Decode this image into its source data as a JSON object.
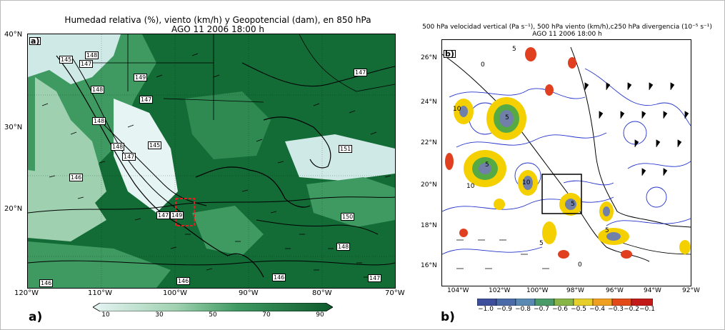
{
  "panel_a": {
    "title_line1": "Humedad relativa (%), viento (km/h) y Geopotencial (dam), en 850 hPa",
    "title_line2": "AGO 11 2006 18:00 h",
    "tag": "a)",
    "inner_tag": "a)",
    "lat_labels": [
      "40°N",
      "30°N",
      "20°N"
    ],
    "lon_labels": [
      "120°W",
      "110°W",
      "100°W",
      "90°W",
      "80°W",
      "70°W"
    ],
    "colorbar_ticks": [
      "10",
      "30",
      "50",
      "70",
      "90"
    ],
    "contour_labels": [
      "145",
      "148",
      "147",
      "148",
      "149",
      "147",
      "151",
      "148",
      "145",
      "147",
      "148",
      "149",
      "147",
      "150",
      "148",
      "146",
      "146",
      "147",
      "146",
      "146",
      "147"
    ]
  },
  "panel_b": {
    "title_line1": "500 hPa velocidad vertical (Pa s⁻¹), 500 hPa viento (km/h),c250 hPa divergencia (10⁻⁵ s⁻¹)",
    "title_line2": "AGO 11 2006 18:00 h",
    "tag": "b)",
    "inner_tag": "b)",
    "lat_labels": [
      "26°N",
      "24°N",
      "22°N",
      "20°N",
      "18°N",
      "16°N"
    ],
    "lon_labels": [
      "104°W",
      "102°W",
      "100°W",
      "98°W",
      "96°W",
      "94°W",
      "92°W"
    ],
    "colorbar_ticks": [
      "−1.0",
      "−0.9",
      "−0.8",
      "−0.7",
      "−0.6",
      "−0.5",
      "−0.4",
      "−0.3",
      "−0.2",
      "−0.1"
    ],
    "contour_labels": [
      "10",
      "5",
      "5",
      "10",
      "5",
      "10",
      "5",
      "5",
      "0",
      "5",
      "0"
    ]
  },
  "colors": {
    "green_dark": "#136b36",
    "green_mid": "#3f9a62",
    "green_light": "#9fd1b0",
    "pale": "#d9eef0",
    "highlight_box": "#e02020",
    "contour_blue": "#2233cc"
  }
}
